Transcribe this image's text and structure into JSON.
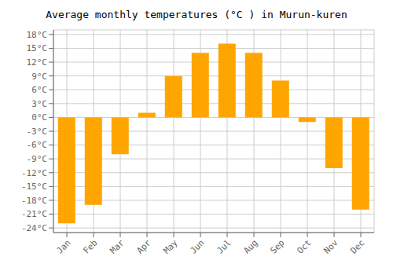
{
  "chart_data": {
    "type": "bar",
    "title": "Average monthly temperatures (°C ) in Murun-kuren",
    "categories": [
      "Jan",
      "Feb",
      "Mar",
      "Apr",
      "May",
      "Jun",
      "Jul",
      "Aug",
      "Sep",
      "Oct",
      "Nov",
      "Dec"
    ],
    "values": [
      -23,
      -19,
      -8,
      1,
      9,
      14,
      16,
      14,
      8,
      -1,
      -11,
      -20
    ],
    "color": "#FFA500",
    "ylim": [
      -25,
      19
    ],
    "yticks": [
      {
        "value": -24,
        "label": "-24°C"
      },
      {
        "value": -21,
        "label": "-21°C"
      },
      {
        "value": -18,
        "label": "-18°C"
      },
      {
        "value": -15,
        "label": "-15°C"
      },
      {
        "value": -12,
        "label": "-12°C"
      },
      {
        "value": -9,
        "label": "-9°C"
      },
      {
        "value": -6,
        "label": "-6°C"
      },
      {
        "value": -3,
        "label": "-3°C"
      },
      {
        "value": 0,
        "label": "0°C"
      },
      {
        "value": 3,
        "label": "3°C"
      },
      {
        "value": 6,
        "label": "6°C"
      },
      {
        "value": 9,
        "label": "9°C"
      },
      {
        "value": 12,
        "label": "12°C"
      },
      {
        "value": 15,
        "label": "15°C"
      },
      {
        "value": 18,
        "label": "18°C"
      }
    ],
    "grid": true
  }
}
